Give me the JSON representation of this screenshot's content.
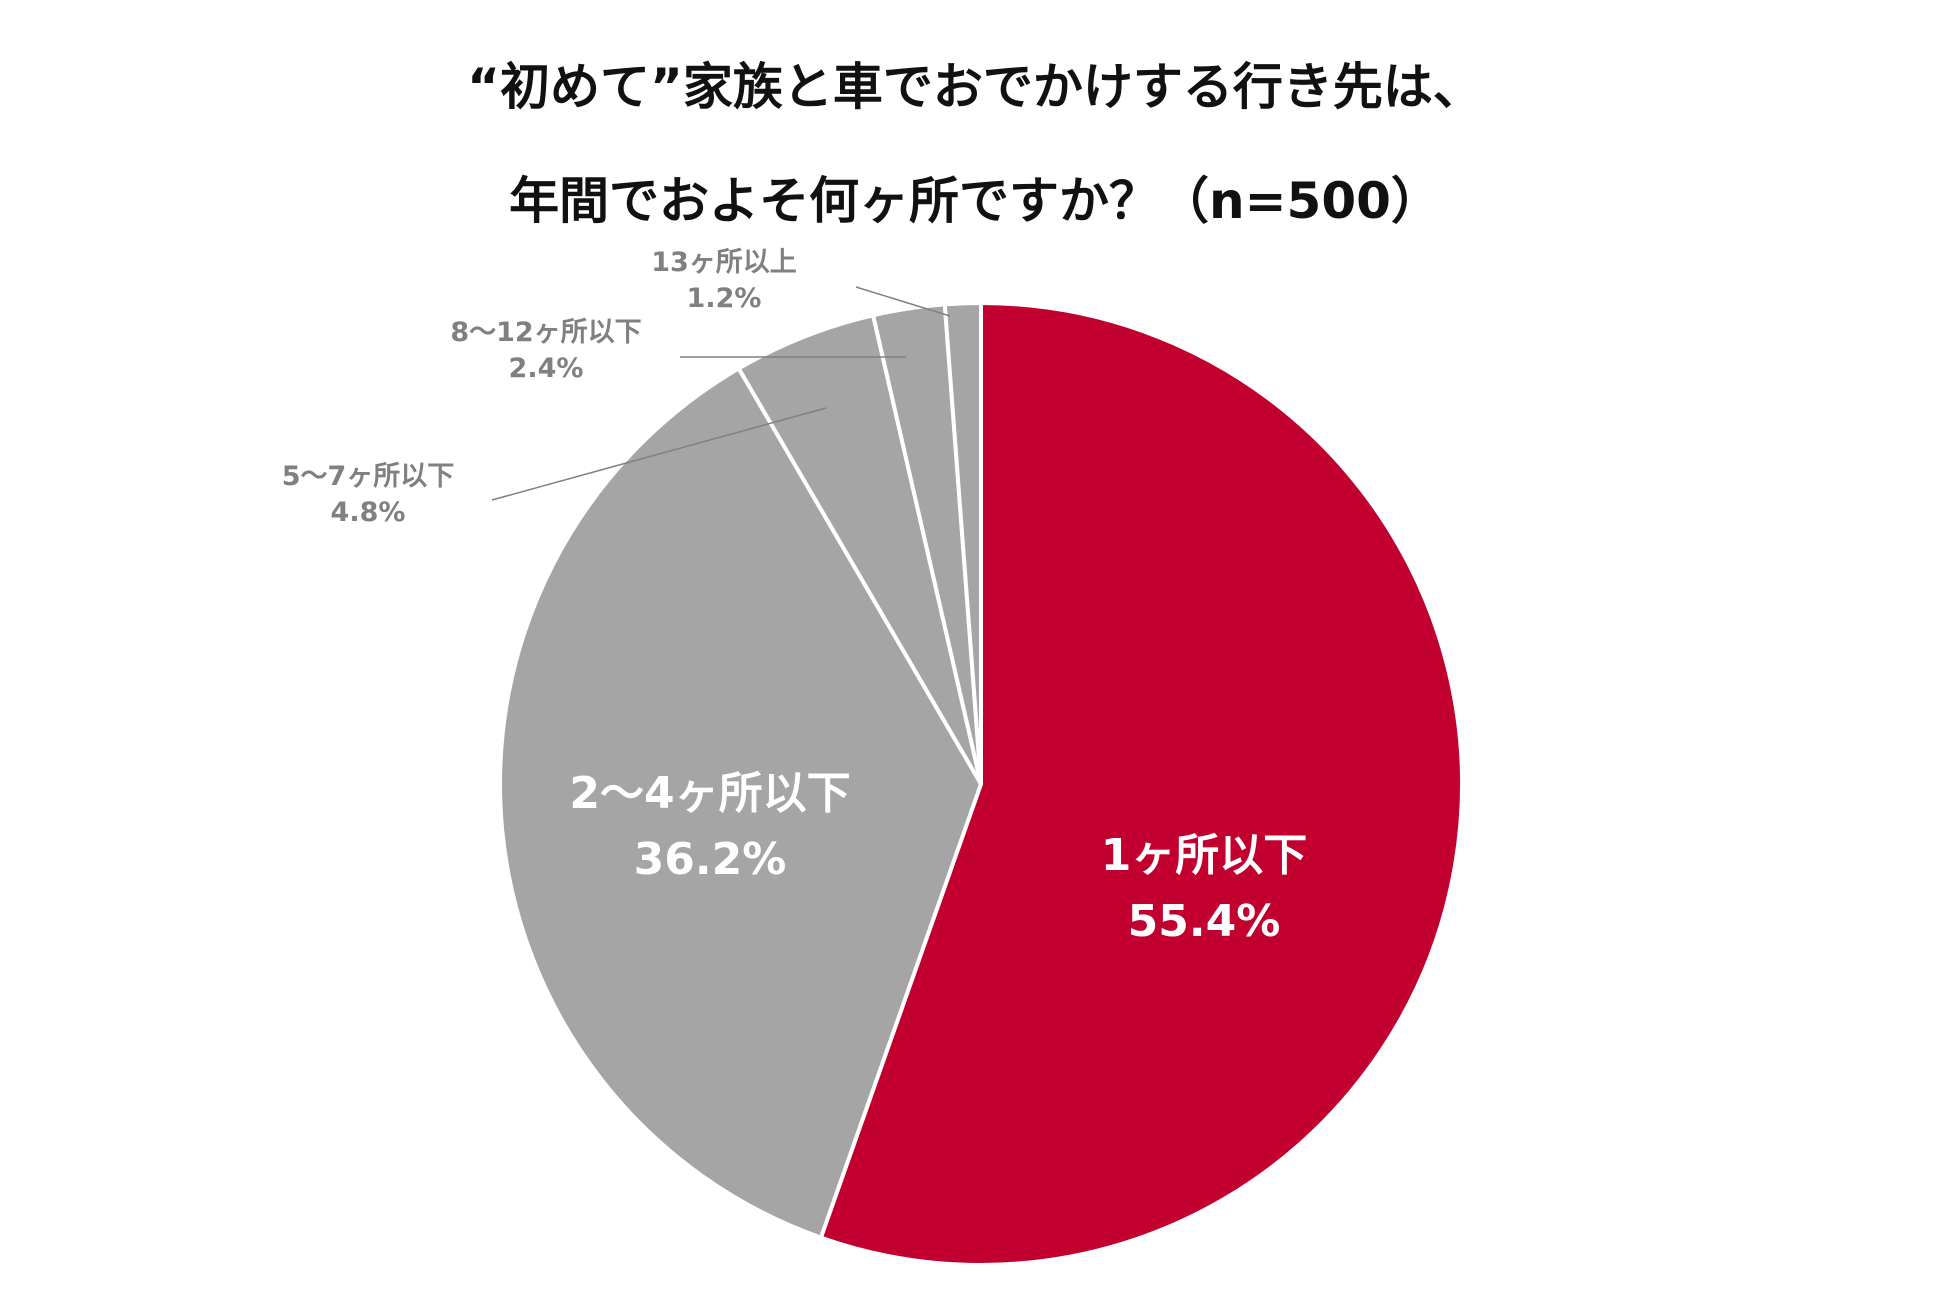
{
  "chart_data": {
    "type": "pie",
    "title": [
      "“初めて”家族と車でおでかけする行き先は、",
      "年間でおよそ何ヶ所ですか？（n=500）"
    ],
    "sample_size": 500,
    "slices": [
      {
        "label": "1ヶ所以下",
        "value": 55.4,
        "value_label": "55.4%",
        "color": "#c2002f",
        "label_placement": "inside"
      },
      {
        "label": "2〜4ヶ所以下",
        "value": 36.2,
        "value_label": "36.2%",
        "color": "#a5a5a5",
        "label_placement": "inside"
      },
      {
        "label": "5〜7ヶ所以下",
        "value": 4.8,
        "value_label": "4.8%",
        "color": "#a5a5a5",
        "label_placement": "outside"
      },
      {
        "label": "8〜12ヶ所以下",
        "value": 2.4,
        "value_label": "2.4%",
        "color": "#a5a5a5",
        "label_placement": "outside"
      },
      {
        "label": "13ヶ所以上",
        "value": 1.2,
        "value_label": "1.2%",
        "color": "#a5a5a5",
        "label_placement": "outside"
      }
    ],
    "start_angle": "12 o'clock",
    "direction": "clockwise",
    "legend": "none"
  },
  "colors": {
    "title": "#111111",
    "inside_label": "#ffffff",
    "outside_label": "#808080",
    "leader_line": "#808080",
    "slice_border": "#ffffff"
  }
}
